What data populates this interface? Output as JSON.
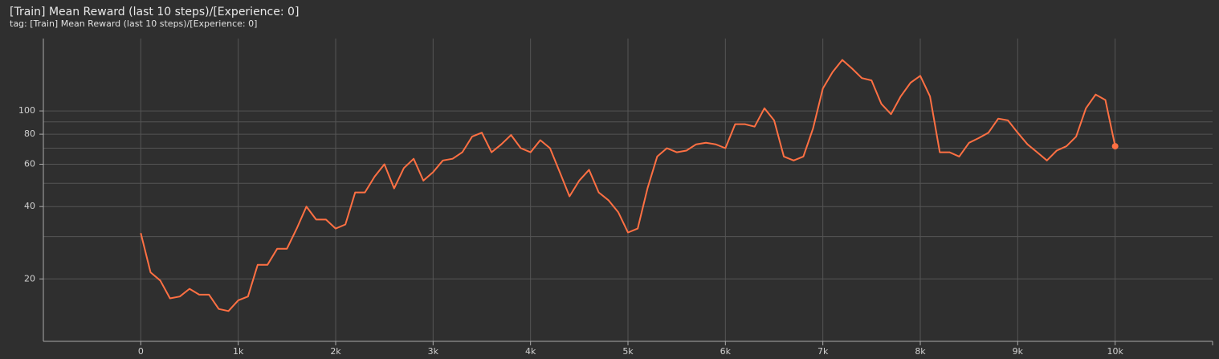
{
  "chart_data": {
    "type": "line",
    "title": "[Train] Mean Reward (last 10 steps)/[Experience: 0]",
    "subtitle": "tag: [Train] Mean Reward (last 10 steps)/[Experience: 0]",
    "x": [
      0,
      100,
      200,
      300,
      400,
      500,
      600,
      700,
      800,
      900,
      1000,
      1100,
      1200,
      1300,
      1400,
      1500,
      1600,
      1700,
      1800,
      1900,
      2000,
      2100,
      2200,
      2300,
      2400,
      2500,
      2600,
      2700,
      2800,
      2900,
      3000,
      3100,
      3200,
      3300,
      3400,
      3500,
      3600,
      3700,
      3800,
      3900,
      4000,
      4100,
      4200,
      4300,
      4400,
      4500,
      4600,
      4700,
      4800,
      4900,
      5000,
      5100,
      5200,
      5300,
      5400,
      5500,
      5600,
      5700,
      5800,
      5900,
      6000,
      6100,
      6200,
      6300,
      6400,
      6500,
      6600,
      6700,
      6800,
      6900,
      7000,
      7100,
      7200,
      7300,
      7400,
      7500,
      7600,
      7700,
      7800,
      7900,
      8000,
      8100,
      8200,
      8300,
      8400,
      8500,
      8600,
      8700,
      8800,
      8900,
      9000,
      9100,
      9200,
      9300,
      9400,
      9500,
      9600,
      9700,
      9800,
      9900,
      10000
    ],
    "values": [
      31,
      21.3,
      19.7,
      16.6,
      16.9,
      18.2,
      17.2,
      17.2,
      15,
      14.7,
      16.3,
      16.9,
      22.9,
      22.9,
      26.7,
      26.7,
      32.4,
      40,
      35.3,
      35.3,
      32.4,
      33.7,
      45.8,
      45.8,
      53.3,
      60,
      47.6,
      57.8,
      63.2,
      51.3,
      55.6,
      62.2,
      63.2,
      67.3,
      78.2,
      81.2,
      67.3,
      72.6,
      79.4,
      70,
      67.3,
      75.6,
      70,
      55.6,
      44.1,
      51.3,
      56.9,
      45.8,
      42.5,
      37.9,
      31.2,
      32.4,
      47.6,
      64.6,
      70,
      67.3,
      68.4,
      72.6,
      73.7,
      72.6,
      70,
      88.1,
      88.1,
      86,
      102.6,
      91.3,
      64.6,
      62.2,
      64.6,
      84.6,
      124,
      145,
      163,
      150,
      137,
      134,
      107,
      96.9,
      115,
      131,
      140,
      115,
      67.3,
      67.3,
      64.6,
      73.7,
      77.1,
      81.2,
      92.9,
      91.3,
      81.2,
      72.6,
      67.3,
      62.2,
      68.4,
      71.3,
      78.2,
      102.6,
      117,
      111,
      71.3
    ],
    "color": "#ff7043",
    "xlim": [
      -1000,
      11000
    ],
    "xticks": [
      0,
      {
        "value": 1000,
        "label": "1k"
      },
      {
        "value": 2000,
        "label": "2k"
      },
      {
        "value": 3000,
        "label": "3k"
      },
      {
        "value": 4000,
        "label": "4k"
      },
      {
        "value": 5000,
        "label": "5k"
      },
      {
        "value": 6000,
        "label": "6k"
      },
      {
        "value": 7000,
        "label": "7k"
      },
      {
        "value": 8000,
        "label": "8k"
      },
      {
        "value": 9000,
        "label": "9k"
      },
      {
        "value": 10000,
        "label": "10k"
      }
    ],
    "ylim": [
      11,
      200
    ],
    "yscale": "log",
    "yticks": [
      20,
      40,
      60,
      80,
      100
    ],
    "y_minor_ticks": [
      30,
      50,
      70,
      90
    ],
    "grid": true
  }
}
